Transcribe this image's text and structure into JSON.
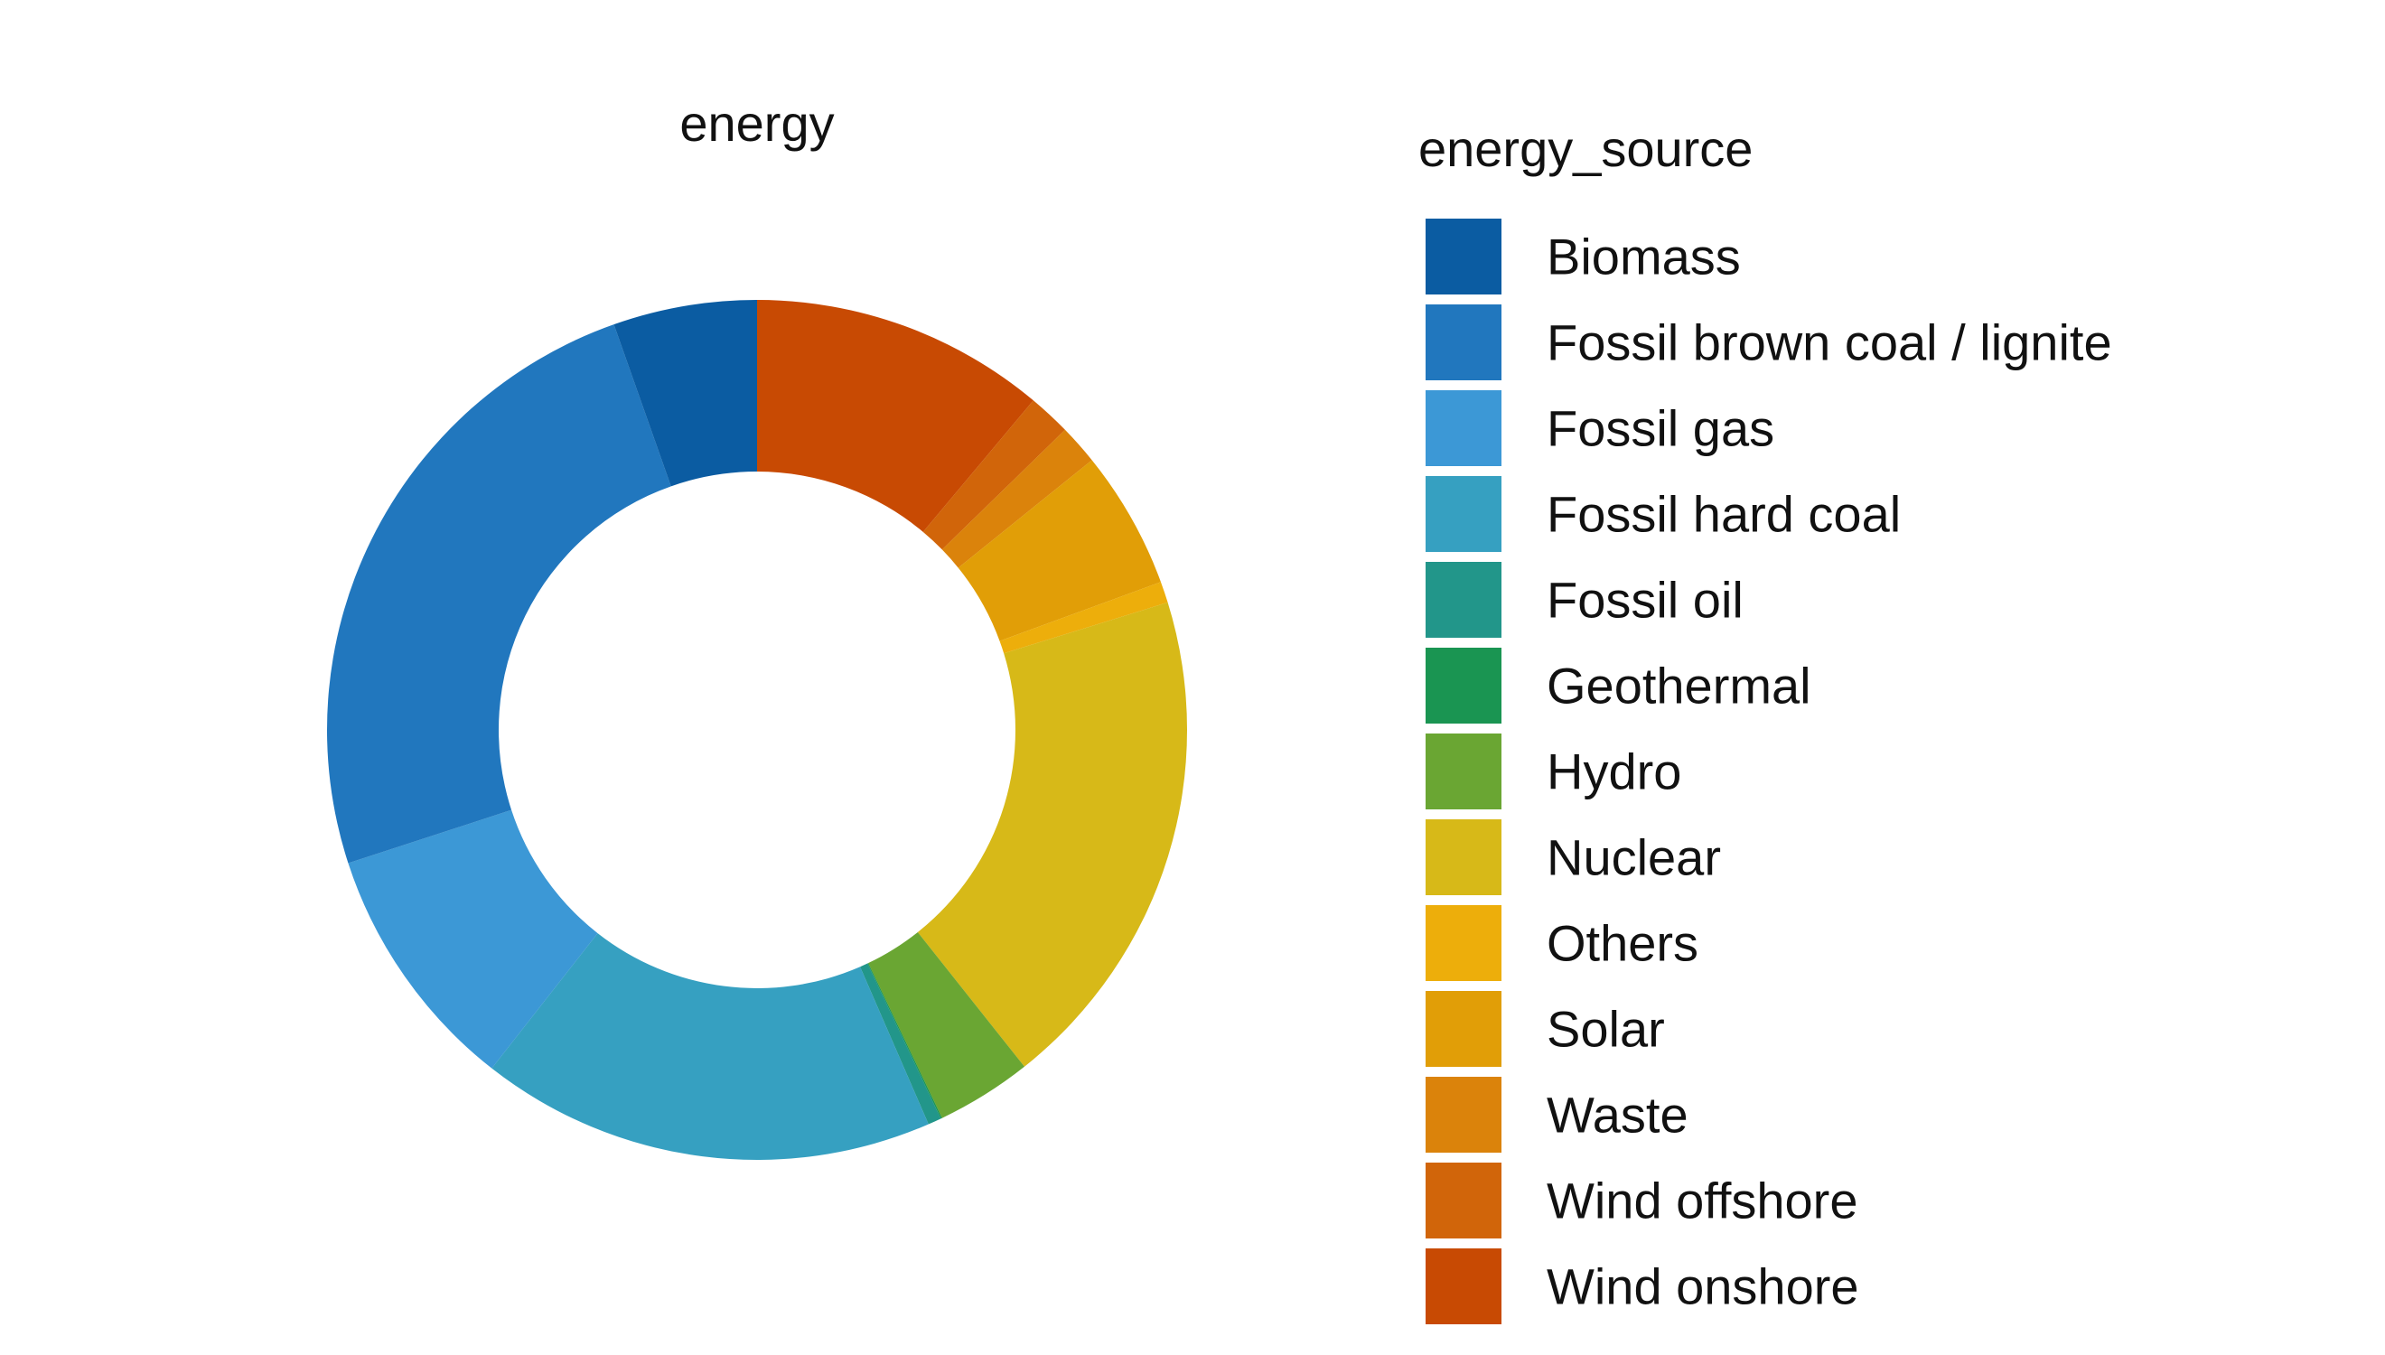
{
  "chart_data": {
    "type": "pie",
    "donut": true,
    "title": "energy",
    "legend_title": "energy_source",
    "legend_position": "right",
    "start": "12 o'clock",
    "direction": "clockwise",
    "slices": [
      {
        "name": "Wind onshore",
        "value": 11.1,
        "color": "#C84A03"
      },
      {
        "name": "Wind offshore",
        "value": 1.6,
        "color": "#D1650A"
      },
      {
        "name": "Waste",
        "value": 1.5,
        "color": "#DB830B"
      },
      {
        "name": "Solar",
        "value": 5.2,
        "color": "#E19E07"
      },
      {
        "name": "Others",
        "value": 0.8,
        "color": "#EDAE0B"
      },
      {
        "name": "Nuclear",
        "value": 19.1,
        "color": "#D7B918"
      },
      {
        "name": "Hydro",
        "value": 3.6,
        "color": "#6AA633"
      },
      {
        "name": "Geothermal",
        "value": 0.05,
        "color": "#1A9552"
      },
      {
        "name": "Fossil oil",
        "value": 0.5,
        "color": "#22968A"
      },
      {
        "name": "Fossil hard coal",
        "value": 17.1,
        "color": "#36A0C1"
      },
      {
        "name": "Fossil gas",
        "value": 9.4,
        "color": "#3C98D6"
      },
      {
        "name": "Fossil brown coal / lignite",
        "value": 24.6,
        "color": "#2177BE"
      },
      {
        "name": "Biomass",
        "value": 5.4,
        "color": "#0B5CA2"
      }
    ],
    "legend": [
      {
        "name": "Biomass",
        "color": "#0B5CA2"
      },
      {
        "name": "Fossil brown coal / lignite",
        "color": "#2177BE"
      },
      {
        "name": "Fossil gas",
        "color": "#3C98D6"
      },
      {
        "name": "Fossil hard coal",
        "color": "#36A0C1"
      },
      {
        "name": "Fossil oil",
        "color": "#22968A"
      },
      {
        "name": "Geothermal",
        "color": "#1A9552"
      },
      {
        "name": "Hydro",
        "color": "#6AA633"
      },
      {
        "name": "Nuclear",
        "color": "#D7B918"
      },
      {
        "name": "Others",
        "color": "#EDAE0B"
      },
      {
        "name": "Solar",
        "color": "#E19E07"
      },
      {
        "name": "Waste",
        "color": "#DB830B"
      },
      {
        "name": "Wind offshore",
        "color": "#D1650A"
      },
      {
        "name": "Wind onshore",
        "color": "#C84A03"
      }
    ]
  }
}
